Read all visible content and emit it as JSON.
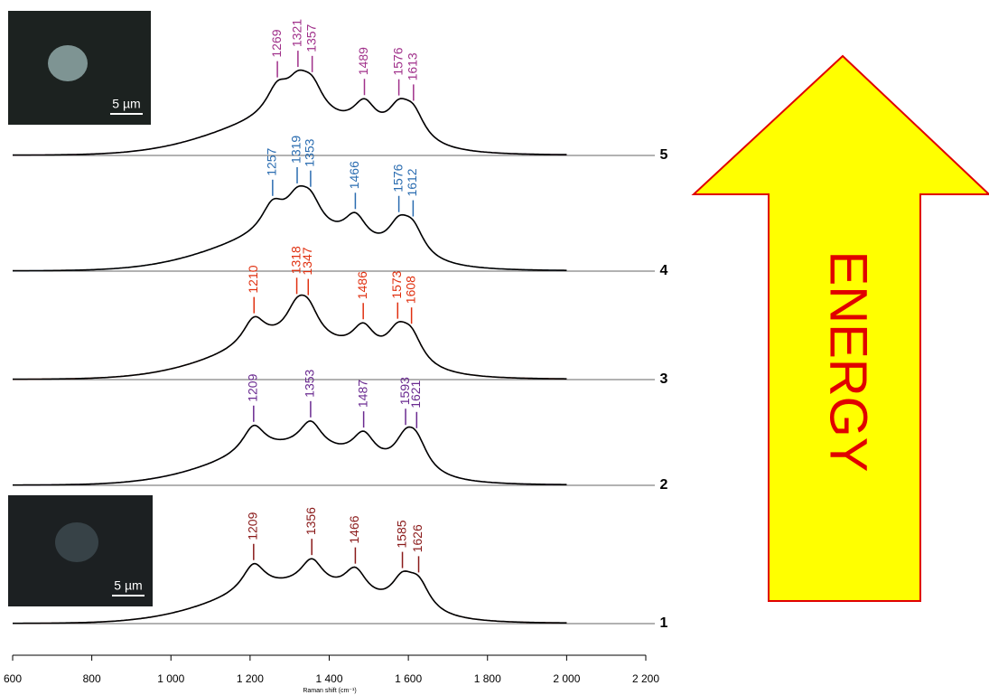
{
  "chart_data": {
    "type": "stacked-spectra",
    "x_label": "Raman shift (cm⁻¹)",
    "xlim": [
      600,
      2200
    ],
    "xticks": [
      600,
      800,
      {
        "value": 1000,
        "label": "1 000"
      },
      {
        "value": 1200,
        "label": "1 200"
      },
      {
        "value": 1400,
        "label": "1 400"
      },
      {
        "value": 1600,
        "label": "1 600"
      },
      {
        "value": 1800,
        "label": "1 800"
      },
      {
        "value": 2000,
        "label": "2 000"
      },
      {
        "value": 2200,
        "label": "2 200"
      }
    ],
    "series": [
      {
        "name": "5",
        "color": "#a0308a",
        "peaks": [
          1269,
          1321,
          1357,
          1489,
          1576,
          1613
        ]
      },
      {
        "name": "4",
        "color": "#2a6cb0",
        "peaks": [
          1257,
          1319,
          1353,
          1466,
          1576,
          1612
        ]
      },
      {
        "name": "3",
        "color": "#e03010",
        "peaks": [
          1210,
          1318,
          1347,
          1486,
          1573,
          1608
        ]
      },
      {
        "name": "2",
        "color": "#6a2a90",
        "peaks": [
          1209,
          1353,
          1487,
          1593,
          1621
        ]
      },
      {
        "name": "1",
        "color": "#8a1a1a",
        "peaks": [
          1209,
          1356,
          1466,
          1585,
          1626
        ]
      }
    ],
    "insets": [
      {
        "scale": "5 µm"
      },
      {
        "scale": "5 µm"
      }
    ],
    "annotation": "ENERGY"
  }
}
